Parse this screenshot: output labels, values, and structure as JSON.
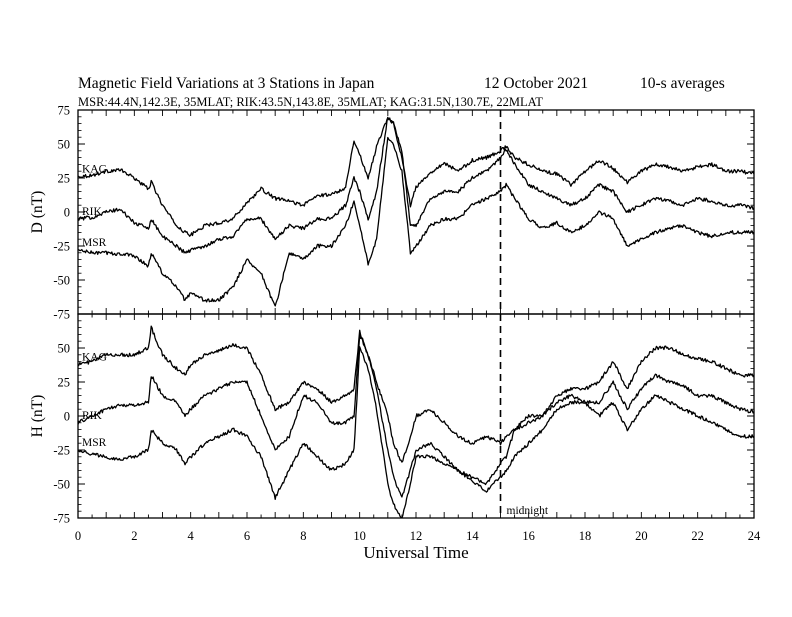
{
  "header": {
    "title": "Magnetic Field Variations at 3 Stations in Japan",
    "date": "12 October 2021",
    "averaging": "10-s averages",
    "subtitle": "MSR:44.4N,142.3E, 35MLAT;  RIK:43.5N,143.8E, 35MLAT;  KAG:31.5N,130.7E, 22MLAT"
  },
  "colors": {
    "line": "#000000",
    "background": "#ffffff"
  },
  "chart_data": [
    {
      "type": "line",
      "panel": "top",
      "ylabel": "D (nT)",
      "xlabel": "",
      "xlim": [
        0,
        24
      ],
      "ylim": [
        -75,
        75
      ],
      "yticks": [
        75,
        50,
        25,
        0,
        -25,
        -50,
        -75
      ],
      "grid": false,
      "x": [
        0,
        0.5,
        1,
        1.5,
        2,
        2.5,
        2.6,
        3,
        3.5,
        3.8,
        4,
        4.5,
        5,
        5.5,
        6,
        6.5,
        7,
        7.5,
        8,
        8.5,
        9,
        9.5,
        9.8,
        10,
        10.3,
        10.6,
        11,
        11.2,
        11.5,
        11.8,
        12,
        12.5,
        13,
        13.5,
        14,
        14.5,
        15,
        15.2,
        15.5,
        16,
        16.5,
        17,
        17.5,
        18,
        18.5,
        19,
        19.5,
        20,
        20.5,
        21,
        21.5,
        22,
        22.5,
        23,
        23.5,
        24
      ],
      "series": [
        {
          "name": "KAG",
          "values": [
            26,
            27,
            30,
            31,
            25,
            17,
            22,
            5,
            -10,
            -15,
            -17,
            -10,
            -8,
            -5,
            7,
            17,
            10,
            8,
            5,
            12,
            13,
            18,
            53,
            42,
            25,
            48,
            70,
            65,
            40,
            5,
            18,
            29,
            36,
            30,
            38,
            40,
            45,
            48,
            40,
            35,
            30,
            28,
            20,
            30,
            38,
            32,
            22,
            30,
            35,
            33,
            30,
            33,
            35,
            30,
            30,
            28
          ]
        },
        {
          "name": "RIK",
          "values": [
            -5,
            -4,
            0,
            2,
            -8,
            -12,
            -5,
            -18,
            -25,
            -30,
            -28,
            -25,
            -20,
            -18,
            -5,
            -5,
            -20,
            -10,
            -12,
            -5,
            -5,
            5,
            25,
            15,
            -5,
            15,
            70,
            65,
            45,
            -10,
            -10,
            10,
            15,
            15,
            25,
            30,
            40,
            46,
            35,
            20,
            15,
            10,
            5,
            10,
            20,
            15,
            0,
            5,
            10,
            8,
            5,
            10,
            8,
            5,
            5,
            3
          ]
        },
        {
          "name": "MSR",
          "values": [
            -28,
            -30,
            -30,
            -31,
            -32,
            -40,
            -30,
            -45,
            -55,
            -65,
            -60,
            -65,
            -65,
            -55,
            -35,
            -45,
            -70,
            -30,
            -35,
            -25,
            -25,
            -10,
            8,
            -10,
            -38,
            -20,
            55,
            50,
            30,
            -30,
            -25,
            -10,
            -5,
            -5,
            5,
            10,
            15,
            20,
            10,
            -5,
            -12,
            -8,
            -15,
            -10,
            0,
            -5,
            -25,
            -20,
            -15,
            -12,
            -10,
            -15,
            -18,
            -15,
            -15,
            -15
          ]
        }
      ],
      "annotations": [
        {
          "x": 15,
          "style": "dashed vertical line"
        }
      ]
    },
    {
      "type": "line",
      "panel": "bottom",
      "ylabel": "H (nT)",
      "xlabel": "Universal Time",
      "xlim": [
        0,
        24
      ],
      "ylim": [
        -75,
        75
      ],
      "yticks": [
        50,
        25,
        0,
        -25,
        -50,
        -75
      ],
      "xticks": [
        0,
        2,
        4,
        6,
        8,
        10,
        12,
        14,
        16,
        18,
        20,
        22,
        24
      ],
      "grid": false,
      "x": [
        0,
        0.5,
        1,
        1.5,
        2,
        2.5,
        2.6,
        3,
        3.5,
        3.8,
        4,
        4.5,
        5,
        5.5,
        6,
        6.5,
        7,
        7.5,
        8,
        8.5,
        9,
        9.5,
        9.8,
        10,
        10.3,
        10.6,
        11,
        11.2,
        11.5,
        11.8,
        12,
        12.5,
        13,
        13.5,
        14,
        14.5,
        15,
        15.2,
        15.5,
        16,
        16.5,
        17,
        17.5,
        18,
        18.5,
        19,
        19.5,
        20,
        20.5,
        21,
        21.5,
        22,
        22.5,
        23,
        23.5,
        24
      ],
      "series": [
        {
          "name": "KAG",
          "values": [
            38,
            40,
            45,
            45,
            45,
            50,
            65,
            45,
            35,
            30,
            38,
            45,
            48,
            52,
            50,
            30,
            5,
            10,
            25,
            20,
            10,
            15,
            20,
            62,
            45,
            25,
            0,
            -20,
            -35,
            -15,
            0,
            5,
            -5,
            -15,
            -20,
            -15,
            -20,
            -15,
            -10,
            -5,
            0,
            15,
            20,
            20,
            25,
            40,
            20,
            40,
            50,
            50,
            45,
            42,
            40,
            35,
            30,
            30
          ]
        },
        {
          "name": "RIK",
          "values": [
            -5,
            0,
            5,
            8,
            8,
            10,
            30,
            15,
            10,
            0,
            5,
            15,
            20,
            25,
            25,
            0,
            -25,
            -15,
            15,
            10,
            -5,
            -5,
            0,
            60,
            45,
            20,
            -25,
            -45,
            -60,
            -40,
            -25,
            -20,
            -30,
            -40,
            -48,
            -55,
            -45,
            -40,
            -30,
            -20,
            -10,
            5,
            10,
            10,
            10,
            25,
            5,
            20,
            30,
            25,
            22,
            15,
            15,
            10,
            5,
            3
          ]
        },
        {
          "name": "MSR",
          "values": [
            -25,
            -28,
            -30,
            -32,
            -30,
            -25,
            -10,
            -20,
            -25,
            -35,
            -30,
            -20,
            -15,
            -10,
            -15,
            -30,
            -60,
            -40,
            -20,
            -30,
            -40,
            -35,
            -25,
            50,
            35,
            5,
            -50,
            -65,
            -75,
            -50,
            -30,
            -30,
            -35,
            -40,
            -45,
            -50,
            -35,
            -30,
            -10,
            0,
            0,
            10,
            15,
            10,
            0,
            10,
            -10,
            5,
            15,
            10,
            5,
            0,
            -5,
            -10,
            -15,
            -15
          ]
        }
      ],
      "annotations": [
        {
          "x": 15,
          "style": "dashed vertical line",
          "label": "midnight"
        }
      ]
    }
  ]
}
